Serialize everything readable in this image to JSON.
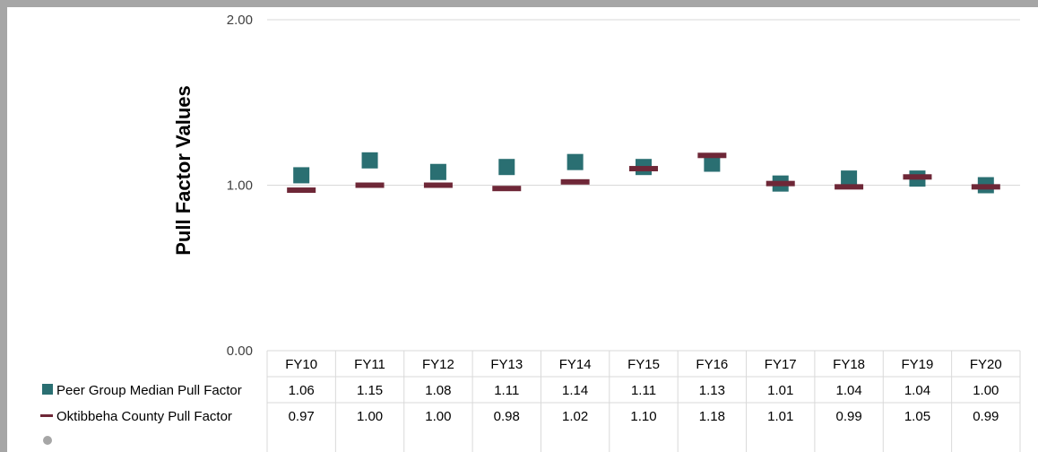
{
  "chart_data": {
    "type": "scatter",
    "ylabel": "Pull Factor Values",
    "ylim": [
      0,
      2
    ],
    "yticks": [
      "0.00",
      "1.00",
      "2.00"
    ],
    "grid": true,
    "legend": "data-table-left",
    "categories": [
      "FY10",
      "FY11",
      "FY12",
      "FY13",
      "FY14",
      "FY15",
      "FY16",
      "FY17",
      "FY18",
      "FY19",
      "FY20"
    ],
    "series": [
      {
        "name": "Peer Group Median Pull Factor",
        "marker": "square",
        "color": "#2a6f72",
        "values": [
          1.06,
          1.15,
          1.08,
          1.11,
          1.14,
          1.11,
          1.13,
          1.01,
          1.04,
          1.04,
          1.0
        ],
        "labels": [
          "1.06",
          "1.15",
          "1.08",
          "1.11",
          "1.14",
          "1.11",
          "1.13",
          "1.01",
          "1.04",
          "1.04",
          "1.00"
        ]
      },
      {
        "name": "Oktibbeha County Pull Factor",
        "marker": "dash",
        "color": "#6e2737",
        "values": [
          0.97,
          1.0,
          1.0,
          0.98,
          1.02,
          1.1,
          1.18,
          1.01,
          0.99,
          1.05,
          0.99
        ],
        "labels": [
          "0.97",
          "1.00",
          "1.00",
          "0.98",
          "1.02",
          "1.10",
          "1.18",
          "1.01",
          "0.99",
          "1.05",
          "0.99"
        ]
      }
    ],
    "extra_legend_marker": {
      "marker": "circle",
      "color": "#a6a6a6"
    }
  }
}
